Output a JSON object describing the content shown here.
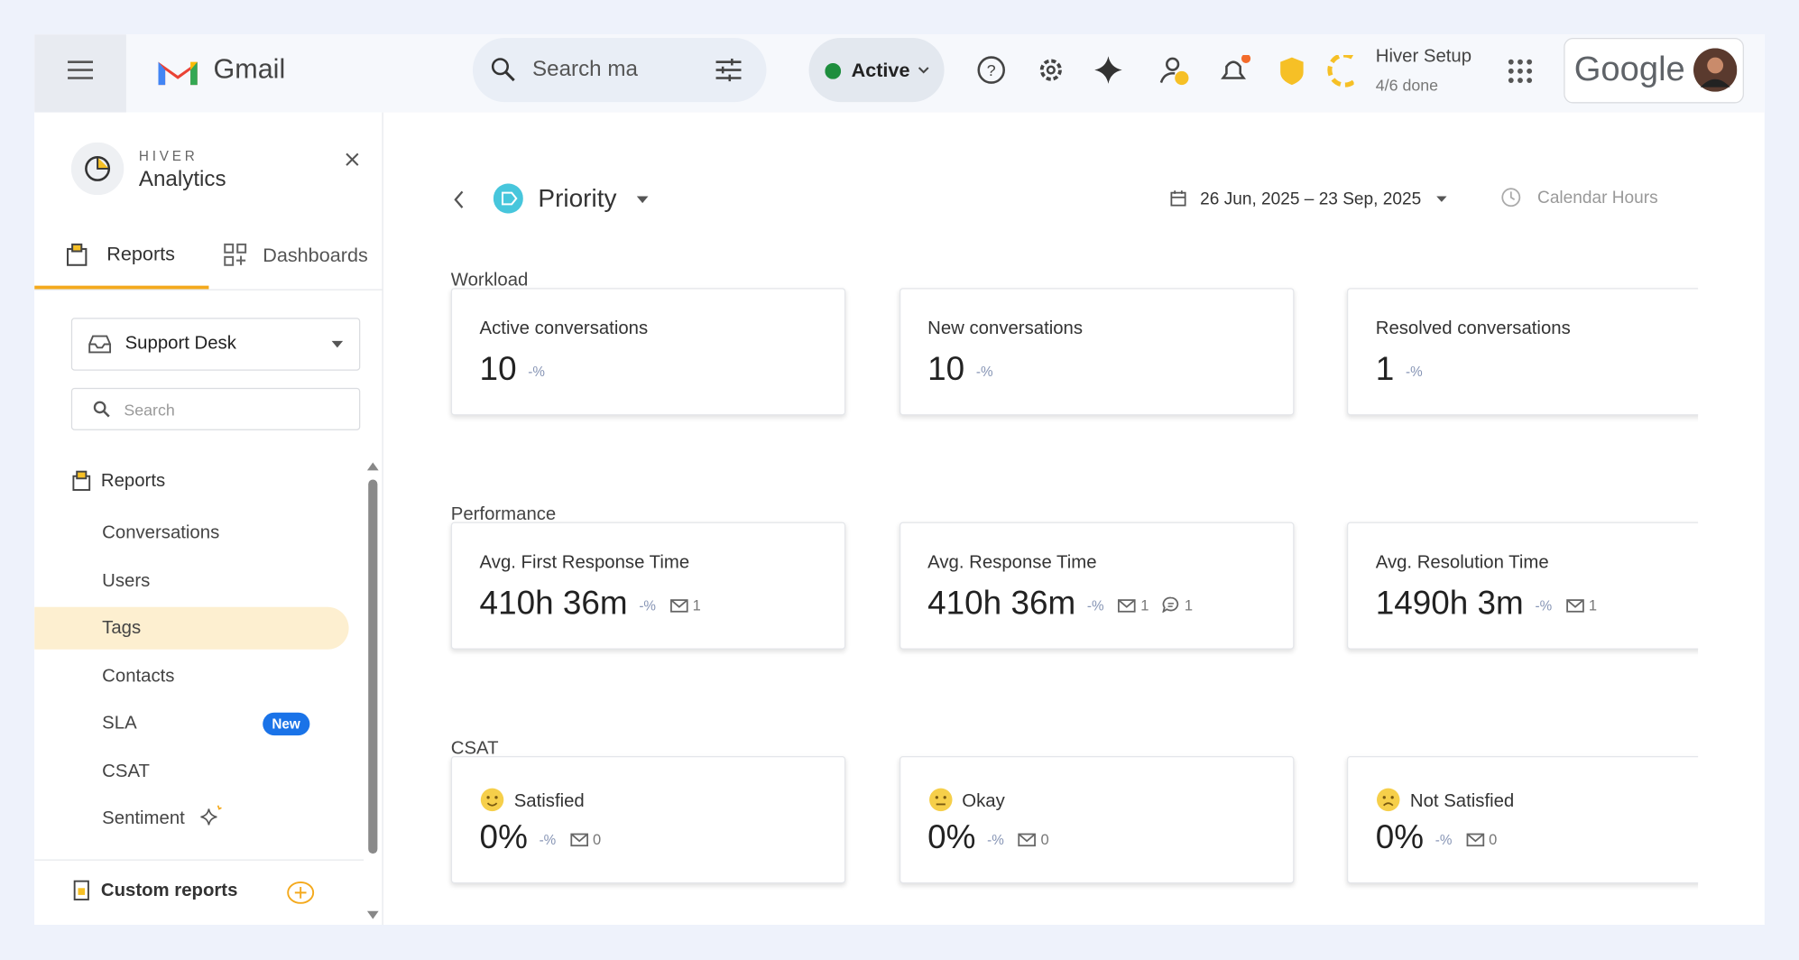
{
  "header": {
    "app_name": "Gmail",
    "search_placeholder": "Search ma",
    "status": "Active",
    "setup_title": "Hiver Setup",
    "setup_progress": "4/6 done",
    "account_brand": "Google"
  },
  "sidebar": {
    "brand": "HIVER",
    "product": "Analytics",
    "tabs": [
      "Reports",
      "Dashboards"
    ],
    "inbox": "Support Desk",
    "search_placeholder": "Search",
    "section": "Reports",
    "items": [
      {
        "label": "Conversations"
      },
      {
        "label": "Users"
      },
      {
        "label": "Tags",
        "selected": true
      },
      {
        "label": "Contacts"
      },
      {
        "label": "SLA",
        "badge": "New"
      },
      {
        "label": "CSAT"
      },
      {
        "label": "Sentiment"
      }
    ],
    "custom_reports": "Custom reports"
  },
  "main": {
    "title": "Priority",
    "date_range": "26 Jun, 2025 – 23 Sep, 2025",
    "hours_mode": "Calendar Hours",
    "sections": [
      {
        "title": "Workload",
        "cards": [
          {
            "title": "Active conversations",
            "value": "10",
            "change": "-%"
          },
          {
            "title": "New conversations",
            "value": "10",
            "change": "-%"
          },
          {
            "title": "Resolved conversations",
            "value": "1",
            "change": "-%"
          }
        ]
      },
      {
        "title": "Performance",
        "cards": [
          {
            "title": "Avg. First Response Time",
            "value": "410h 36m",
            "change": "-%",
            "emails": "1"
          },
          {
            "title": "Avg. Response Time",
            "value": "410h 36m",
            "change": "-%",
            "emails": "1",
            "comments": "1"
          },
          {
            "title": "Avg. Resolution Time",
            "value": "1490h 3m",
            "change": "-%",
            "emails": "1"
          }
        ]
      },
      {
        "title": "CSAT",
        "cards": [
          {
            "title": "Satisfied",
            "value": "0%",
            "change": "-%",
            "emails": "0"
          },
          {
            "title": "Okay",
            "value": "0%",
            "change": "-%",
            "emails": "0"
          },
          {
            "title": "Not Satisfied",
            "value": "0%",
            "change": "-%",
            "emails": "0"
          }
        ]
      }
    ]
  }
}
